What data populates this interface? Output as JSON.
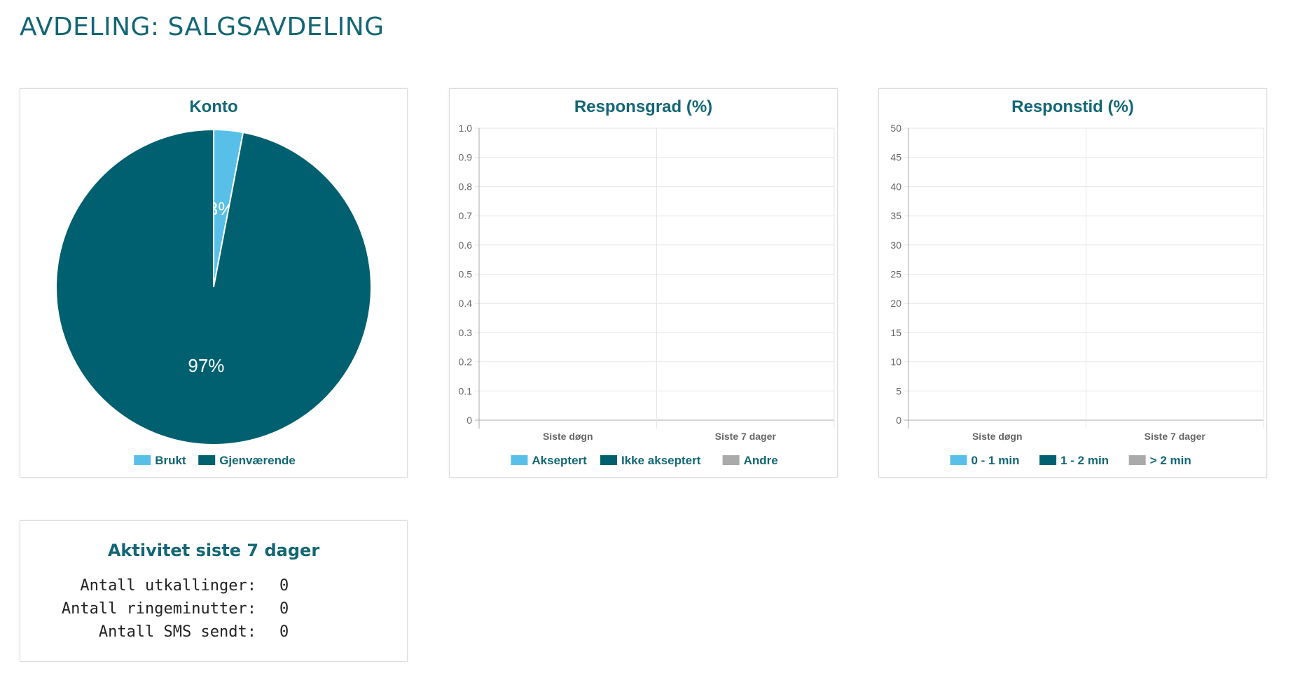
{
  "page": {
    "title": "AVDELING: SALGSAVDELING"
  },
  "colors": {
    "primary": "#136675",
    "light_blue": "#58c0e8",
    "dark_teal": "#00606f",
    "grey": "#aaaaaa"
  },
  "konto": {
    "title": "Konto",
    "chart_data": {
      "type": "pie",
      "labels": [
        "Brukt",
        "Gjenværende"
      ],
      "values": [
        3,
        97
      ],
      "value_labels": [
        "3%",
        "97%"
      ],
      "colors": [
        "#58c0e8",
        "#00606f"
      ],
      "legend": "bottom"
    }
  },
  "responsgrad": {
    "title": "Responsgrad (%)",
    "chart_data": {
      "type": "bar",
      "categories": [
        "Siste døgn",
        "Siste 7 dager"
      ],
      "series": [
        {
          "name": "Akseptert",
          "values": [
            0,
            0
          ],
          "color": "#58c0e8"
        },
        {
          "name": "Ikke akseptert",
          "values": [
            0,
            0
          ],
          "color": "#00606f"
        },
        {
          "name": "Andre",
          "values": [
            0,
            0
          ],
          "color": "#aaaaaa"
        }
      ],
      "ylim": [
        0,
        1.0
      ],
      "yticks": [
        "1.0",
        "0.9",
        "0.8",
        "0.7",
        "0.6",
        "0.5",
        "0.4",
        "0.3",
        "0.2",
        "0.1",
        "0"
      ],
      "grid": true,
      "legend": "bottom"
    }
  },
  "responstid": {
    "title": "Responstid (%)",
    "chart_data": {
      "type": "bar",
      "categories": [
        "Siste døgn",
        "Siste 7 dager"
      ],
      "series": [
        {
          "name": "0 - 1 min",
          "values": [
            0,
            0
          ],
          "color": "#58c0e8"
        },
        {
          "name": "1 - 2 min",
          "values": [
            0,
            0
          ],
          "color": "#00606f"
        },
        {
          "name": "> 2 min",
          "values": [
            0,
            0
          ],
          "color": "#aaaaaa"
        }
      ],
      "ylim": [
        0,
        50
      ],
      "yticks": [
        "50",
        "45",
        "40",
        "35",
        "30",
        "25",
        "20",
        "15",
        "10",
        "5",
        "0"
      ],
      "grid": true,
      "legend": "bottom"
    }
  },
  "activity": {
    "title": "Aktivitet siste 7 dager",
    "rows": [
      {
        "label": "Antall utkallinger:",
        "value": "0"
      },
      {
        "label": "Antall ringeminutter:",
        "value": "0"
      },
      {
        "label": "Antall SMS sendt:",
        "value": "0"
      }
    ]
  }
}
